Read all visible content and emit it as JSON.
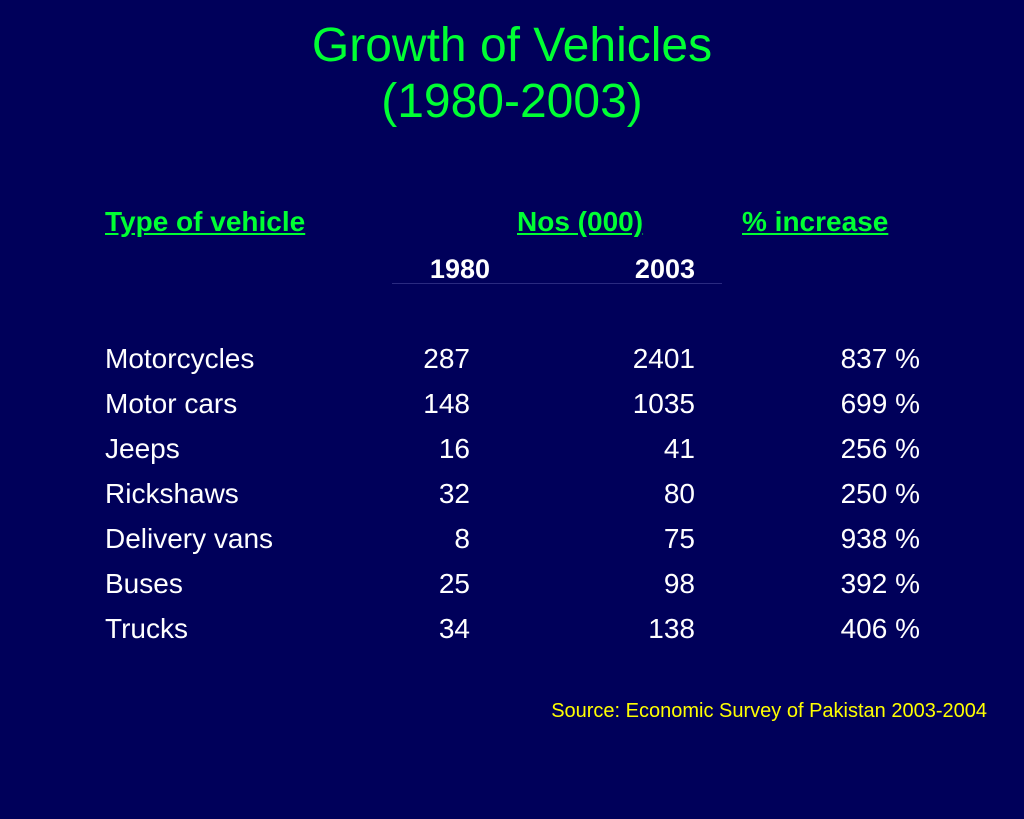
{
  "title": {
    "line1": "Growth of Vehicles",
    "line2": "(1980-2003)"
  },
  "headers": {
    "type": "Type of vehicle",
    "nos": "Nos (000)",
    "pct": "% increase",
    "year_1980": "1980",
    "year_2003": "2003"
  },
  "rows": [
    {
      "name": "Motorcycles",
      "y1980": "287",
      "y2003": "2401",
      "pct": "837 %"
    },
    {
      "name": "Motor cars",
      "y1980": "148",
      "y2003": "1035",
      "pct": "699 %"
    },
    {
      "name": "Jeeps",
      "y1980": "16",
      "y2003": "41",
      "pct": "256 %"
    },
    {
      "name": "Rickshaws",
      "y1980": "32",
      "y2003": "80",
      "pct": "250 %"
    },
    {
      "name": "Delivery vans",
      "y1980": "8",
      "y2003": "75",
      "pct": "938 %"
    },
    {
      "name": "Buses",
      "y1980": "25",
      "y2003": "98",
      "pct": "392 %"
    },
    {
      "name": "Trucks",
      "y1980": "34",
      "y2003": "138",
      "pct": "406 %"
    }
  ],
  "source": "Source: Economic Survey of Pakistan 2003-2004",
  "colors": {
    "background": "#00005a",
    "title": "#00ff33",
    "header": "#00ff33",
    "body_text": "#ffffff",
    "source_text": "#ffff00"
  }
}
